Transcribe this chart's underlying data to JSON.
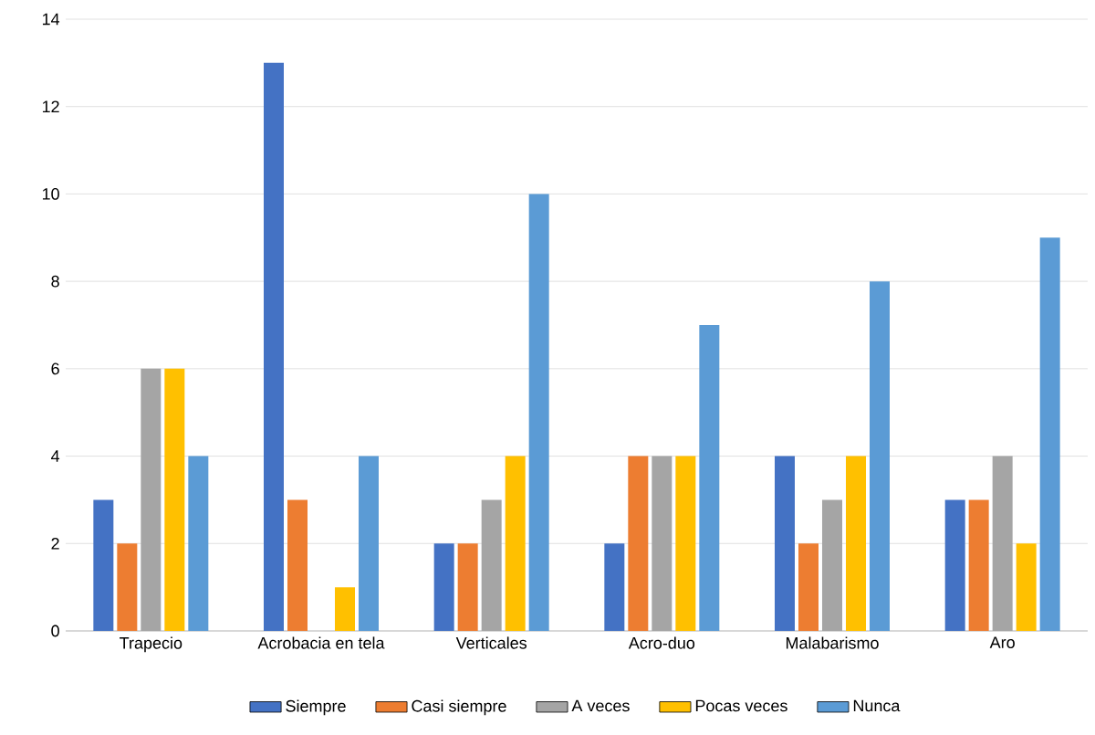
{
  "chart_data": {
    "type": "bar",
    "categories": [
      "Trapecio",
      "Acrobacia en tela",
      "Verticales",
      "Acro-duo",
      "Malabarismo",
      "Aro"
    ],
    "series": [
      {
        "name": "Siempre",
        "color": "#4472c4",
        "values": [
          3,
          13,
          2,
          2,
          4,
          3
        ]
      },
      {
        "name": "Casi siempre",
        "color": "#ed7d31",
        "values": [
          2,
          3,
          2,
          4,
          2,
          3
        ]
      },
      {
        "name": "A veces",
        "color": "#a5a5a5",
        "values": [
          6,
          0,
          3,
          4,
          3,
          4
        ]
      },
      {
        "name": "Pocas veces",
        "color": "#ffc000",
        "values": [
          6,
          1,
          4,
          4,
          4,
          2
        ]
      },
      {
        "name": "Nunca",
        "color": "#5b9bd5",
        "values": [
          4,
          4,
          10,
          7,
          8,
          9
        ]
      }
    ],
    "ylim": [
      0,
      14
    ],
    "yticks": [
      0,
      2,
      4,
      6,
      8,
      10,
      12,
      14
    ],
    "grid": "y",
    "legend": "bottom"
  }
}
